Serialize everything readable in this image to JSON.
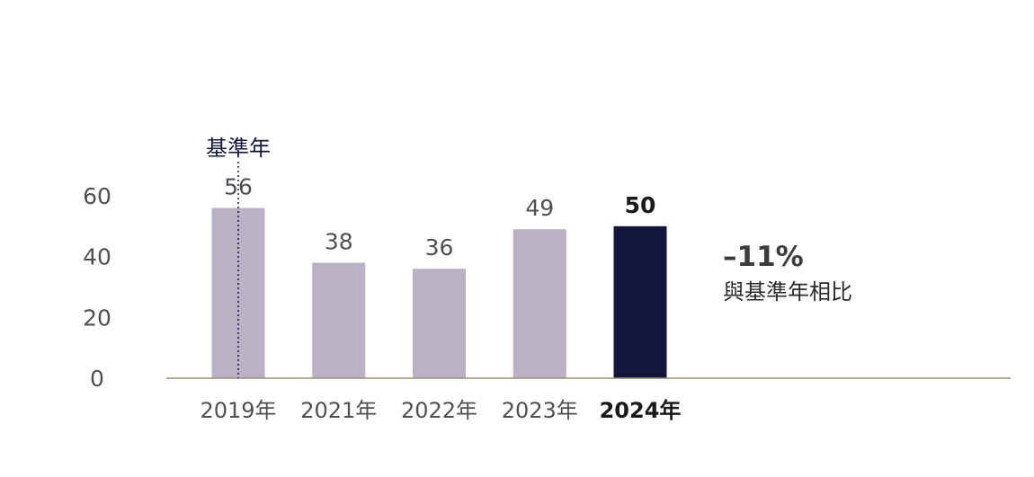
{
  "chart_data": {
    "type": "bar",
    "categories": [
      "2019年",
      "2021年",
      "2022年",
      "2023年",
      "2024年"
    ],
    "values": [
      56,
      38,
      36,
      49,
      50
    ],
    "value_labels": [
      "56",
      "38",
      "36",
      "49",
      "50"
    ],
    "highlight_index": 4,
    "yticks": [
      "0",
      "20",
      "40",
      "60"
    ],
    "ylim": [
      0,
      60
    ],
    "grid": false,
    "baseline_marker": {
      "label": "基準年",
      "category_index": 0
    },
    "annotation": {
      "value": "–11%",
      "caption": "與基準年相比"
    },
    "colors": {
      "bar": "#b9b1c4",
      "highlight": "#14163f",
      "axis": "#9b8f74"
    }
  }
}
